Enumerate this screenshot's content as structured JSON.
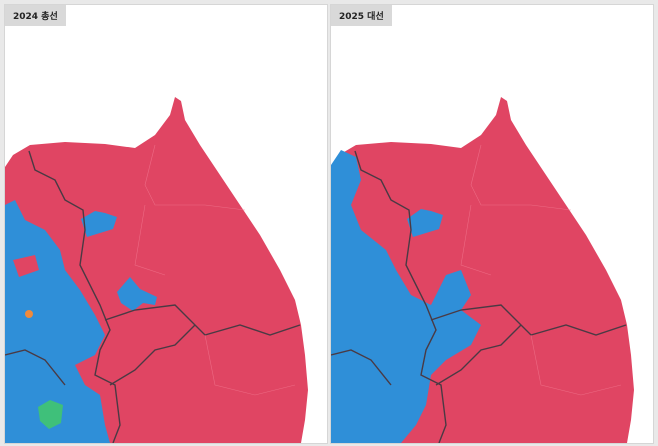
{
  "panels": [
    {
      "title": "2024 총선"
    },
    {
      "title": "2025 대선"
    }
  ],
  "colors": {
    "red": "#e04563",
    "blue": "#2f8fd8",
    "green": "#3fc07a",
    "orange": "#f08a3c",
    "boundary": "#4a3a44",
    "background": "#ffffff"
  }
}
